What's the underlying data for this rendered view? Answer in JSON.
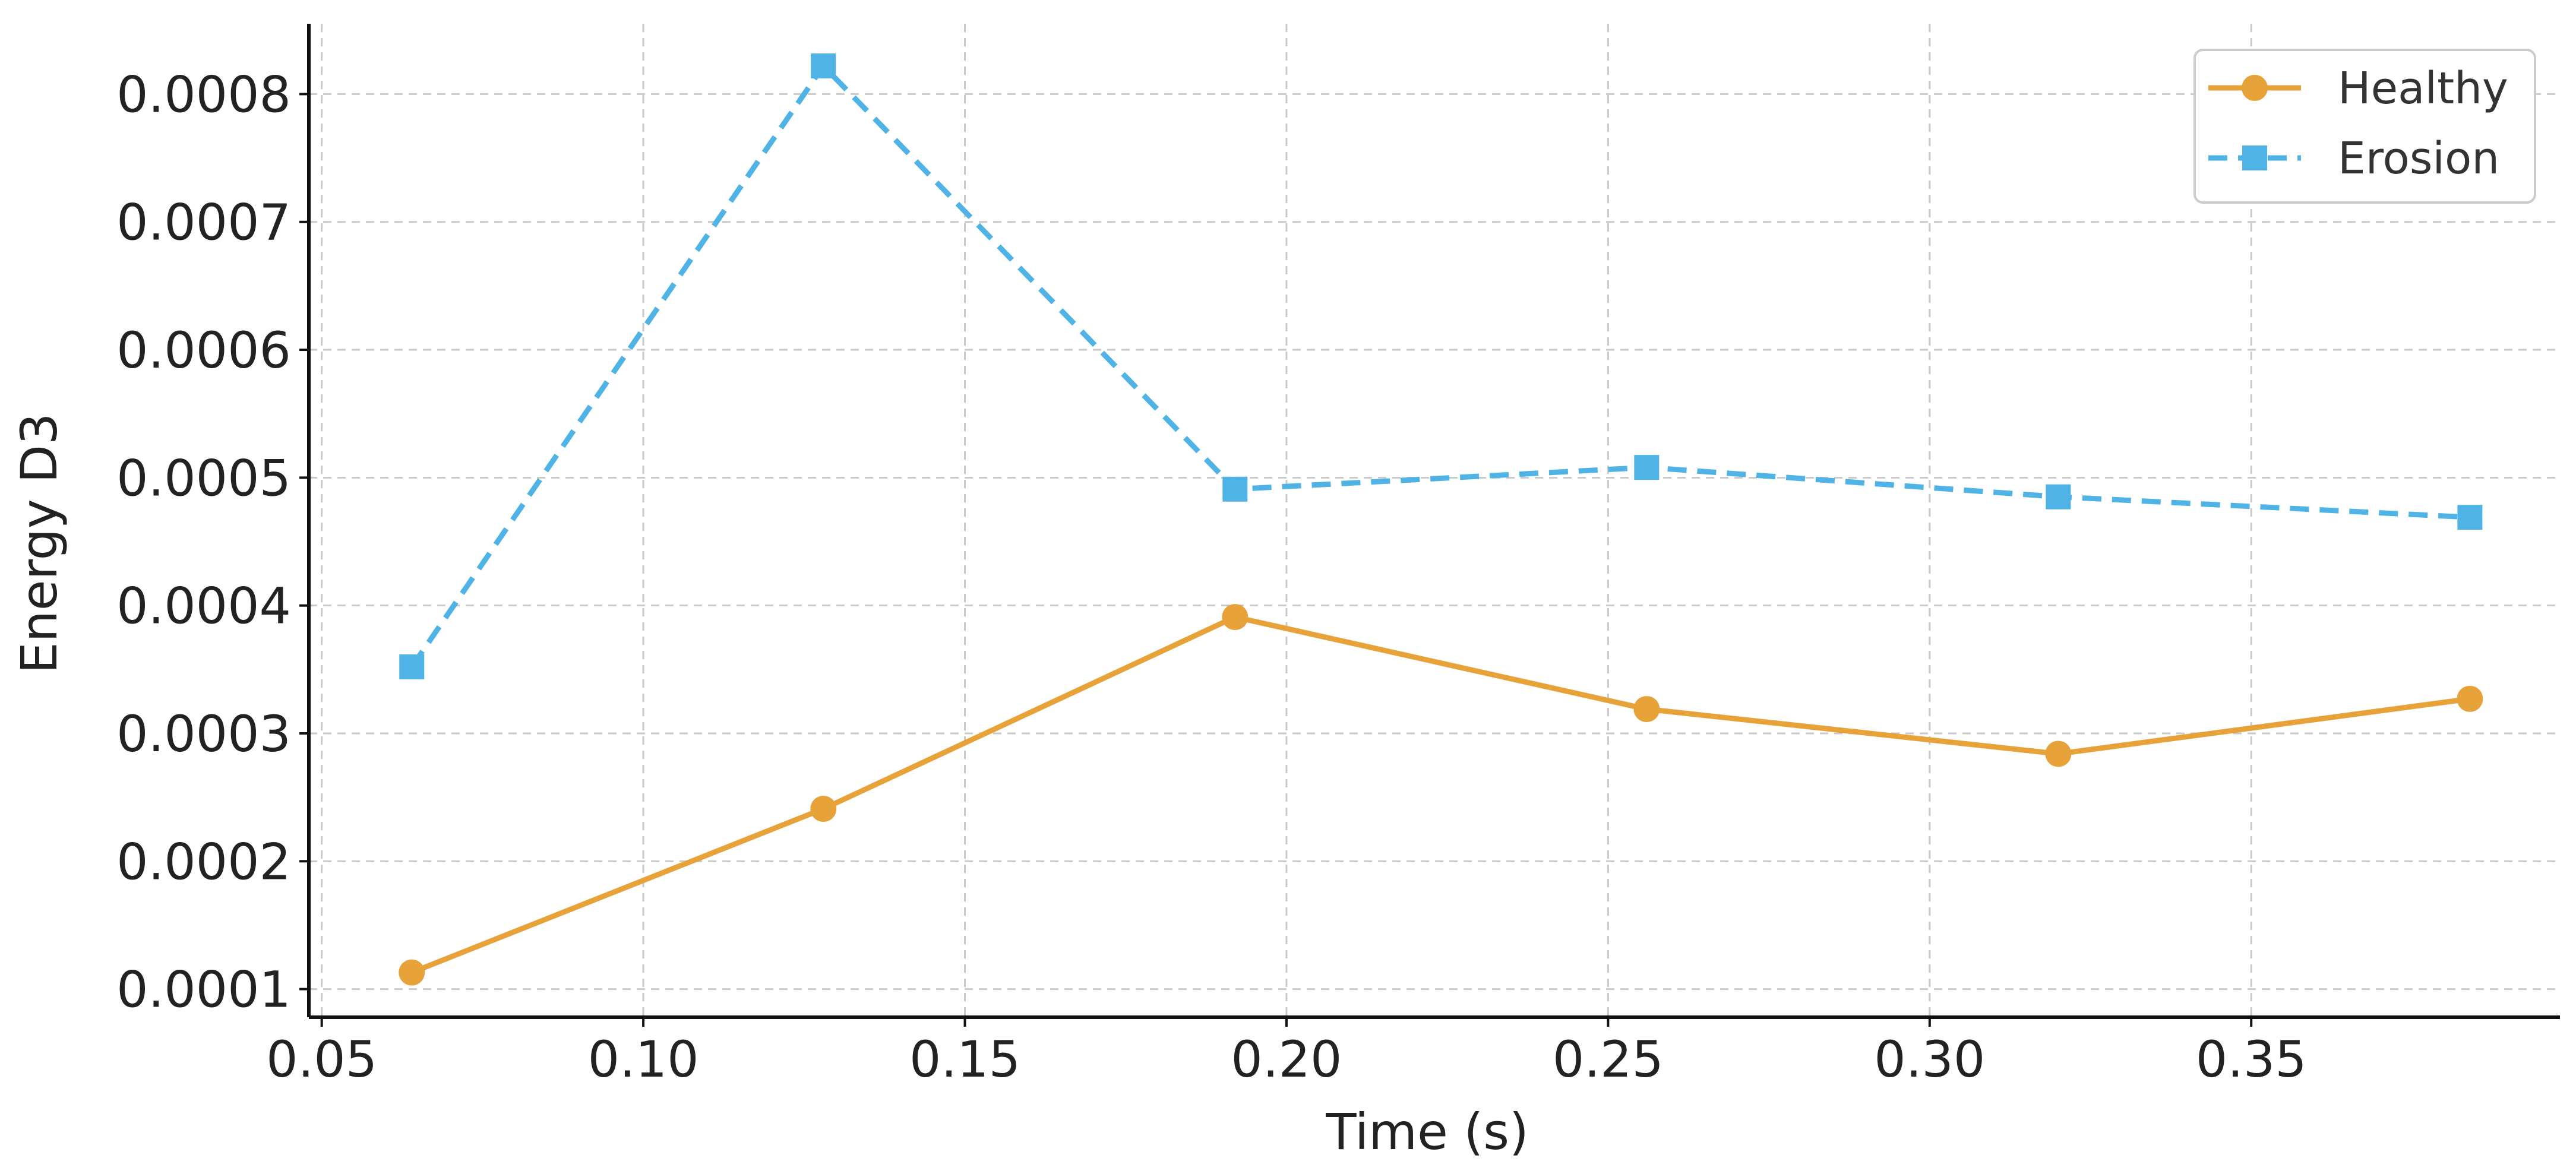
{
  "chart_data": {
    "type": "line",
    "title": "",
    "xlabel": "Time (s)",
    "ylabel": "Energy D3",
    "xlim": [
      0.048,
      0.398
    ],
    "ylim": [
      7.8e-05,
      0.000855
    ],
    "x_ticks": [
      0.05,
      0.1,
      0.15,
      0.2,
      0.25,
      0.3,
      0.35
    ],
    "x_tick_labels": [
      "0.05",
      "0.10",
      "0.15",
      "0.20",
      "0.25",
      "0.30",
      "0.35"
    ],
    "y_ticks": [
      0.0001,
      0.0002,
      0.0003,
      0.0004,
      0.0005,
      0.0006,
      0.0007,
      0.0008
    ],
    "y_tick_labels": [
      "0.0001",
      "0.0002",
      "0.0003",
      "0.0004",
      "0.0005",
      "0.0006",
      "0.0007",
      "0.0008"
    ],
    "grid": true,
    "legend_position": "top-right",
    "x": [
      0.064,
      0.128,
      0.192,
      0.256,
      0.32,
      0.384
    ],
    "series": [
      {
        "name": "Healthy",
        "values": [
          0.000113,
          0.000241,
          0.000391,
          0.000319,
          0.000284,
          0.000327
        ],
        "color": "#E8A23A",
        "marker": "circle",
        "line_style": "solid"
      },
      {
        "name": "Erosion",
        "values": [
          0.000352,
          0.000822,
          0.000491,
          0.000508,
          0.000485,
          0.000469
        ],
        "color": "#4FB3E6",
        "marker": "square",
        "line_style": "dashed"
      }
    ]
  }
}
